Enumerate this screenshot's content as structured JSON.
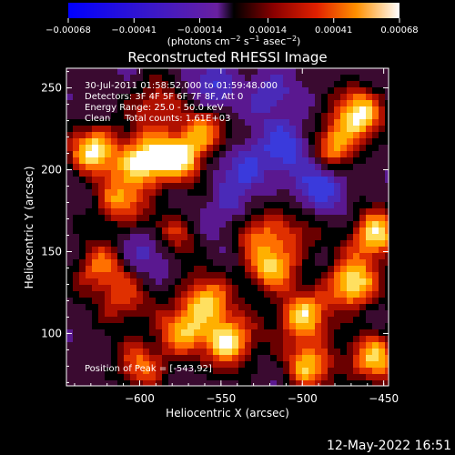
{
  "chart_data": {
    "type": "heatmap",
    "title": "Reconstructed RHESSI Image",
    "xlabel": "Heliocentric X (arcsec)",
    "ylabel": "Heliocentric Y (arcsec)",
    "xlim": [
      -645,
      -447
    ],
    "ylim": [
      68,
      262
    ],
    "x_ticks": [
      -600,
      -550,
      -500,
      -450
    ],
    "x_tick_labels": [
      "−600",
      "−550",
      "−500",
      "−450"
    ],
    "y_ticks": [
      100,
      150,
      200,
      250
    ],
    "y_tick_labels": [
      "100",
      "150",
      "200",
      "250"
    ],
    "colorbar": {
      "range": [
        -0.00068,
        0.00068
      ],
      "ticks": [
        -0.00068,
        -0.00041,
        -0.00014,
        0.00014,
        0.00041,
        0.00068
      ],
      "tick_labels": [
        "−0.00068",
        "−0.00041",
        "−0.00014",
        "0.00014",
        "0.00041",
        "0.00068"
      ],
      "unit_prefix": "(photons cm",
      "unit_exp1": "−2",
      "unit_mid": " s",
      "unit_exp2": "−1",
      "unit_mid2": " asec",
      "unit_exp3": "−2",
      "unit_suffix": ")"
    },
    "annotations": [
      "30-Jul-2011 01:58:52.000 to 01:59:48.000",
      "Detectors: 3F 4F 5F 6F 7F 8F, Att 0",
      "Energy Range: 25.0 - 50.0 keV",
      "Clean     Total counts: 1.61E+03"
    ],
    "peak_label": "Position of Peak = [-543,92]",
    "peak": [
      -543,
      92
    ],
    "intensity_blobs": [
      {
        "x": -628,
        "y": 212,
        "level": 0.95
      },
      {
        "x": -598,
        "y": 205,
        "level": 1.0
      },
      {
        "x": -575,
        "y": 208,
        "level": 0.9
      },
      {
        "x": -612,
        "y": 180,
        "level": 0.7
      },
      {
        "x": -560,
        "y": 225,
        "level": 0.6
      },
      {
        "x": -590,
        "y": 240,
        "level": 0.55
      },
      {
        "x": -465,
        "y": 235,
        "level": 0.9
      },
      {
        "x": -480,
        "y": 215,
        "level": 0.75
      },
      {
        "x": -455,
        "y": 160,
        "level": 0.95
      },
      {
        "x": -470,
        "y": 130,
        "level": 1.0
      },
      {
        "x": -500,
        "y": 110,
        "level": 0.9
      },
      {
        "x": -520,
        "y": 140,
        "level": 0.8
      },
      {
        "x": -545,
        "y": 95,
        "level": 1.0
      },
      {
        "x": -560,
        "y": 120,
        "level": 0.85
      },
      {
        "x": -575,
        "y": 100,
        "level": 0.7
      },
      {
        "x": -600,
        "y": 80,
        "level": 0.6
      },
      {
        "x": -625,
        "y": 140,
        "level": 0.65
      },
      {
        "x": -610,
        "y": 120,
        "level": 0.55
      },
      {
        "x": -495,
        "y": 80,
        "level": 0.8
      },
      {
        "x": -455,
        "y": 85,
        "level": 0.85
      },
      {
        "x": -530,
        "y": 165,
        "level": 0.55
      },
      {
        "x": -580,
        "y": 160,
        "level": 0.5
      },
      {
        "x": -505,
        "y": 160,
        "level": 0.45
      }
    ],
    "negative_blobs": [
      {
        "x": -510,
        "y": 215,
        "level": -0.9
      },
      {
        "x": -490,
        "y": 190,
        "level": -0.85
      },
      {
        "x": -535,
        "y": 200,
        "level": -0.7
      },
      {
        "x": -555,
        "y": 250,
        "level": -0.6
      },
      {
        "x": -520,
        "y": 245,
        "level": -0.55
      },
      {
        "x": -595,
        "y": 150,
        "level": -0.5
      },
      {
        "x": -545,
        "y": 175,
        "level": -0.5
      }
    ]
  },
  "footer": {
    "date": "12-May-2022 16:51"
  }
}
